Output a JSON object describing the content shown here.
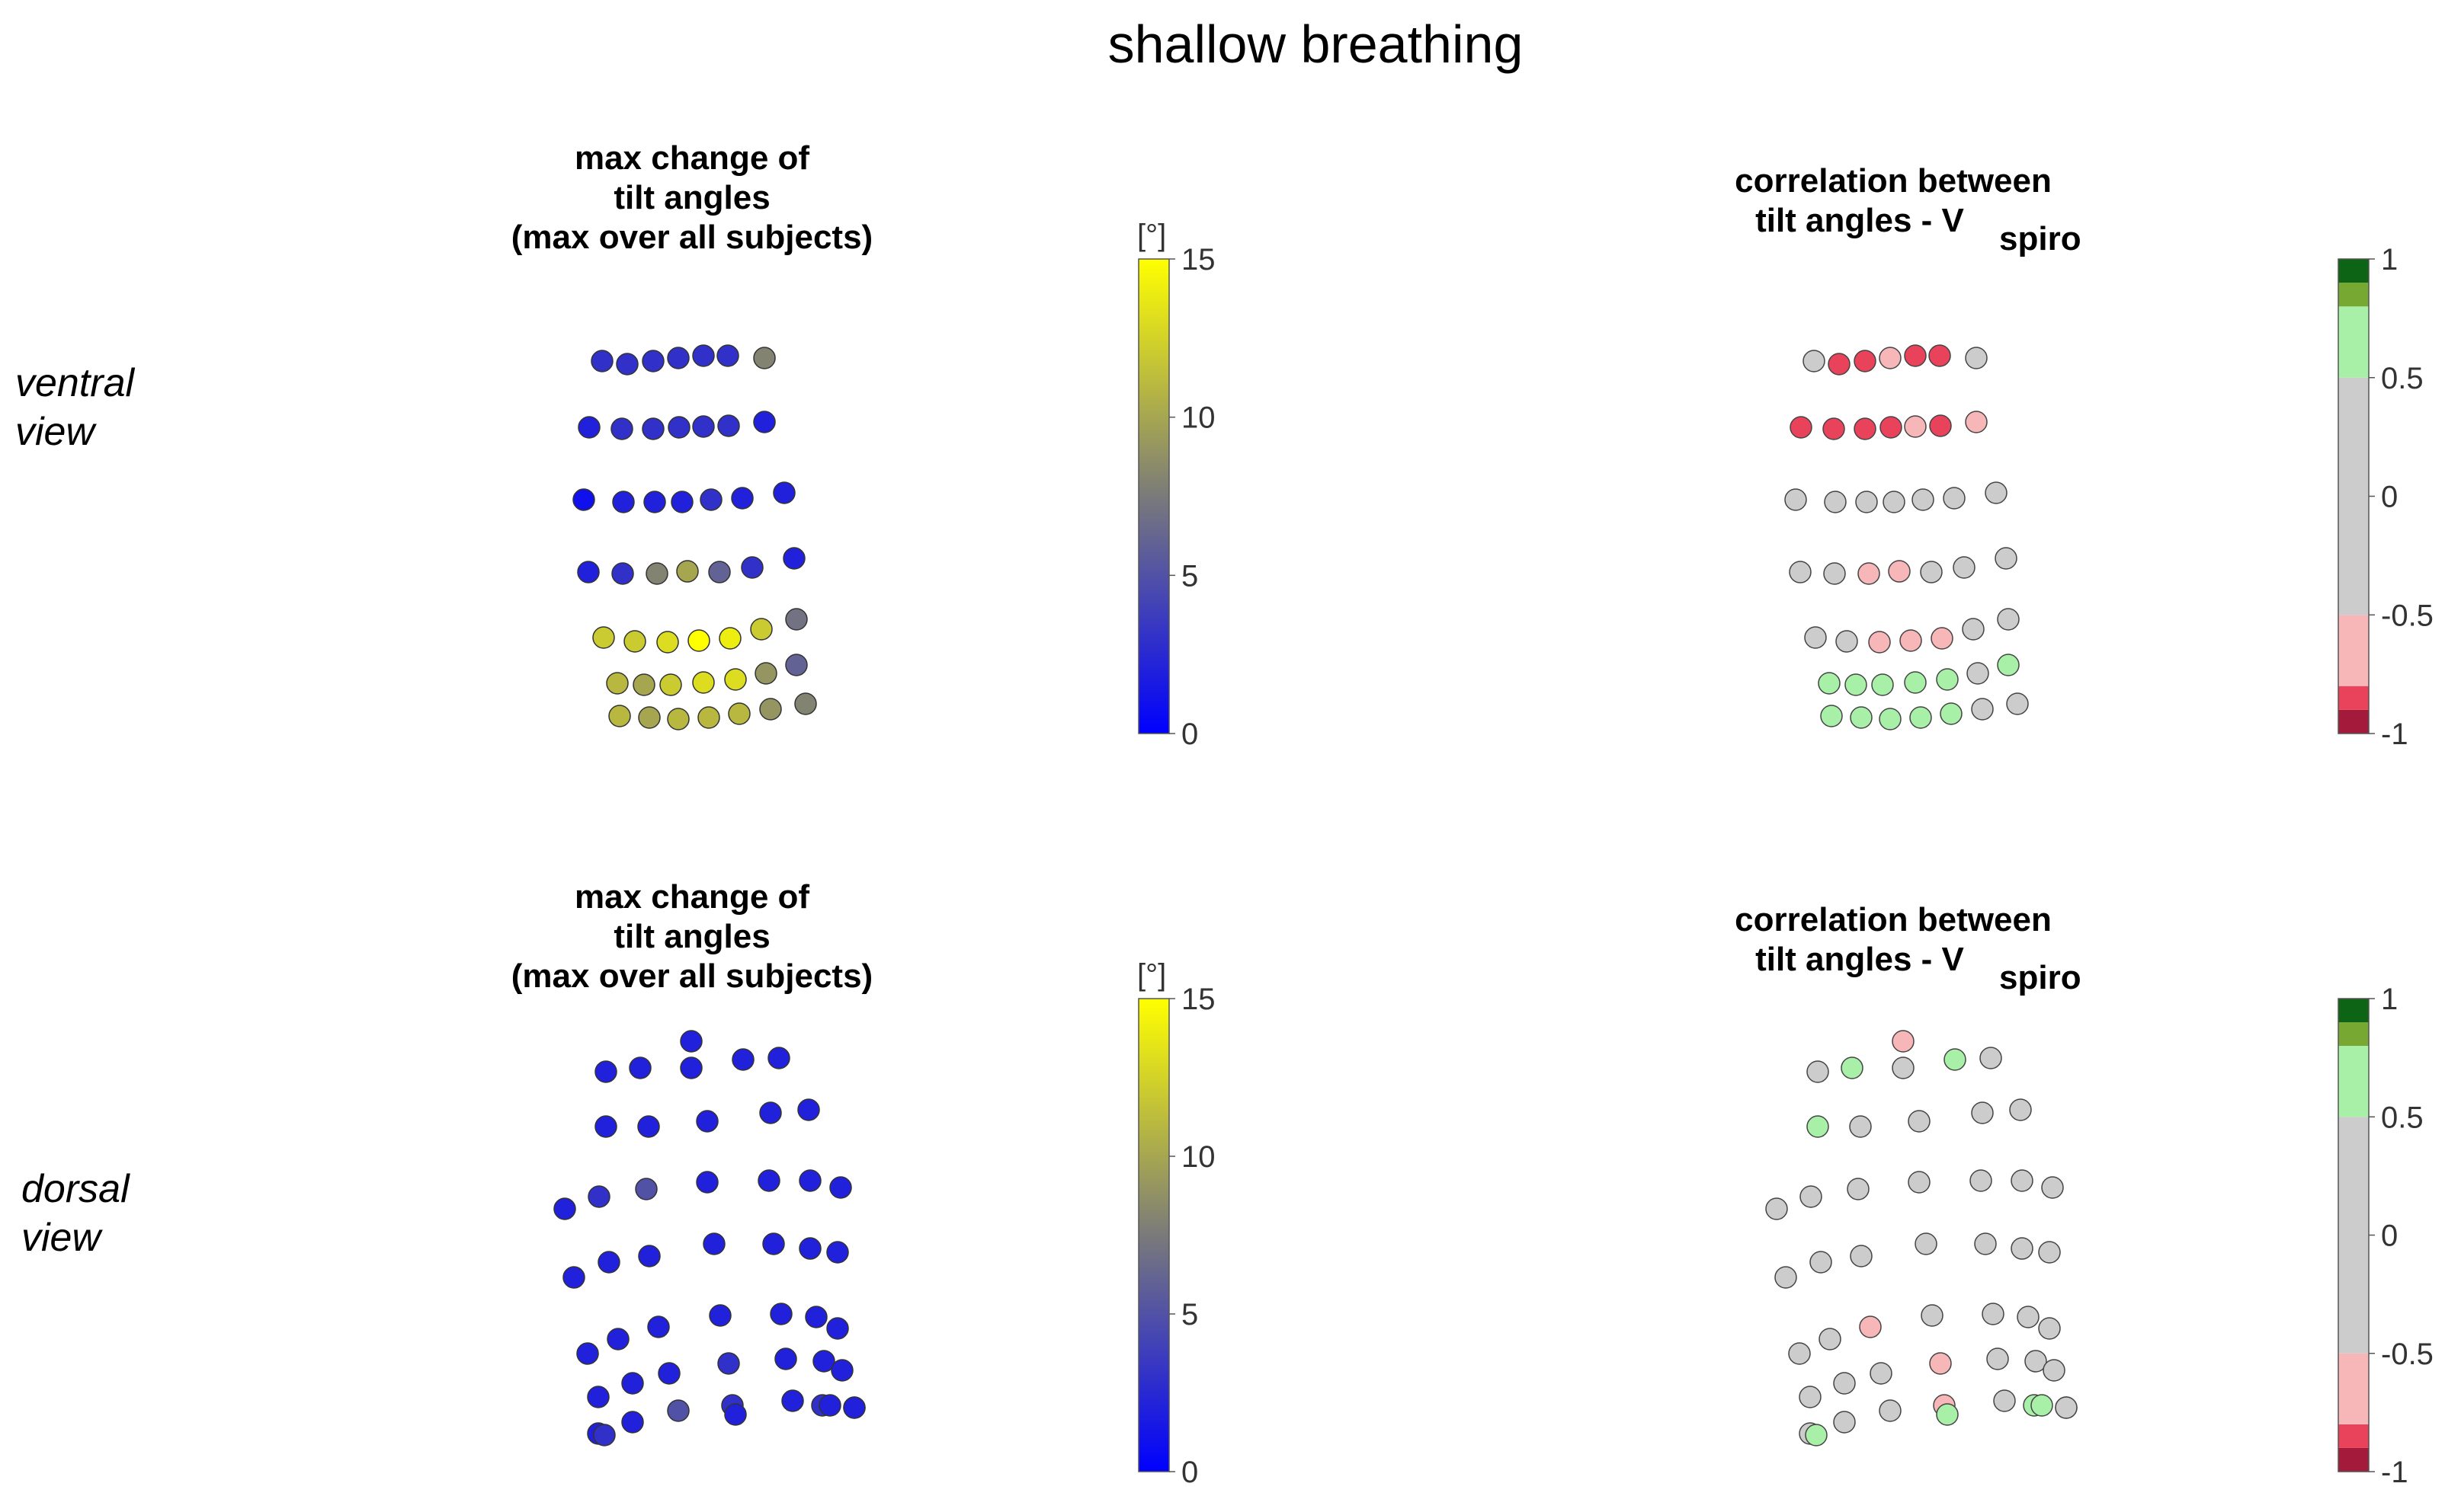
{
  "figure": {
    "title": "shallow breathing",
    "row_labels": [
      {
        "line1": "ventral",
        "line2": "view"
      },
      {
        "line1": "dorsal",
        "line2": "view"
      }
    ],
    "col_titles": [
      {
        "line1": "max change of",
        "line2": "tilt angles",
        "line3": "(max over all subjects)"
      },
      {
        "line1": "correlation between",
        "line2": "tilt angles - V",
        "sub": "spiro"
      }
    ]
  },
  "chart_data": [
    {
      "type": "scatter",
      "panel": "ventral view - max change of tilt angles",
      "color_scale": {
        "unit": "[°]",
        "min": 0,
        "max": 15,
        "ticks": [
          "0",
          "5",
          "10",
          "15"
        ],
        "colors": [
          "#0000ff",
          "#7a7a7a",
          "#ffff00"
        ]
      },
      "rows": [
        [
          3,
          3,
          3,
          3,
          3,
          3,
          8
        ],
        [
          2,
          3,
          3,
          3,
          3,
          3,
          2
        ],
        [
          1,
          2,
          2,
          2,
          3,
          2,
          2
        ],
        [
          2,
          3,
          8,
          10,
          6,
          3,
          2
        ],
        [
          12,
          12,
          13,
          15,
          14,
          12,
          7
        ],
        [
          11,
          10,
          12,
          13,
          13,
          9,
          6
        ],
        [
          11,
          10,
          11,
          11,
          11,
          9,
          8
        ]
      ]
    },
    {
      "type": "scatter",
      "panel": "ventral view - correlation between tilt angles - Vspiro",
      "color_scale": {
        "min": -1,
        "max": 1,
        "ticks": [
          "-1",
          "-0.5",
          "0",
          "0.5",
          "1"
        ],
        "bands": [
          {
            "from": -1,
            "to": -0.9,
            "color": "#a31a3a"
          },
          {
            "from": -0.9,
            "to": -0.8,
            "color": "#e8435a"
          },
          {
            "from": -0.8,
            "to": -0.5,
            "color": "#f7b6b8"
          },
          {
            "from": -0.5,
            "to": 0.5,
            "color": "#cccccc"
          },
          {
            "from": 0.5,
            "to": 0.8,
            "color": "#a8f0a8"
          },
          {
            "from": 0.8,
            "to": 0.9,
            "color": "#76a832"
          },
          {
            "from": 0.9,
            "to": 1,
            "color": "#0c6414"
          }
        ]
      },
      "rows": [
        [
          0,
          -0.85,
          -0.85,
          -0.7,
          -0.85,
          -0.85,
          0
        ],
        [
          -0.85,
          -0.85,
          -0.85,
          -0.85,
          -0.7,
          -0.85,
          -0.7
        ],
        [
          0,
          0,
          0,
          0,
          0,
          0,
          0
        ],
        [
          0,
          0,
          -0.7,
          -0.7,
          0,
          0,
          0
        ],
        [
          0,
          0,
          -0.7,
          -0.7,
          -0.7,
          0,
          0
        ],
        [
          0.6,
          0.6,
          0.6,
          0.6,
          0.6,
          0,
          0.6
        ],
        [
          0.6,
          0.6,
          0.6,
          0.6,
          0.6,
          0,
          0
        ]
      ]
    },
    {
      "type": "scatter",
      "panel": "dorsal view - max change of tilt angles",
      "color_scale": {
        "unit": "[°]",
        "min": 0,
        "max": 15,
        "ticks": [
          "0",
          "5",
          "10",
          "15"
        ],
        "colors": [
          "#0000ff",
          "#7a7a7a",
          "#ffff00"
        ]
      },
      "values": [
        2,
        2,
        2,
        2,
        2,
        2,
        2,
        2,
        2,
        2,
        2,
        2,
        3,
        5,
        2,
        2,
        2,
        2,
        2,
        2,
        2,
        2,
        2,
        2,
        2,
        2,
        2,
        2,
        2,
        2,
        2,
        2,
        2,
        2,
        2,
        3,
        2,
        2,
        2,
        2,
        2,
        5,
        3,
        2,
        3,
        3,
        3,
        2,
        2,
        2
      ]
    },
    {
      "type": "scatter",
      "panel": "dorsal view - correlation between tilt angles - Vspiro",
      "color_scale": {
        "min": -1,
        "max": 1,
        "ticks": [
          "-1",
          "-0.5",
          "0",
          "0.5",
          "1"
        ]
      },
      "values": [
        0,
        0.6,
        -0.7,
        0,
        0.6,
        0,
        0.6,
        0,
        0,
        0,
        0,
        0,
        0,
        0,
        0,
        0,
        0,
        0,
        0,
        0,
        0,
        0,
        0,
        0,
        0,
        0,
        0,
        -0.7,
        0,
        0,
        0,
        0,
        0,
        0,
        0,
        -0.7,
        0,
        0,
        0,
        0,
        0,
        0,
        -0.7,
        0,
        0.6,
        0.6,
        0.6,
        0.6,
        0.6,
        0
      ]
    }
  ]
}
